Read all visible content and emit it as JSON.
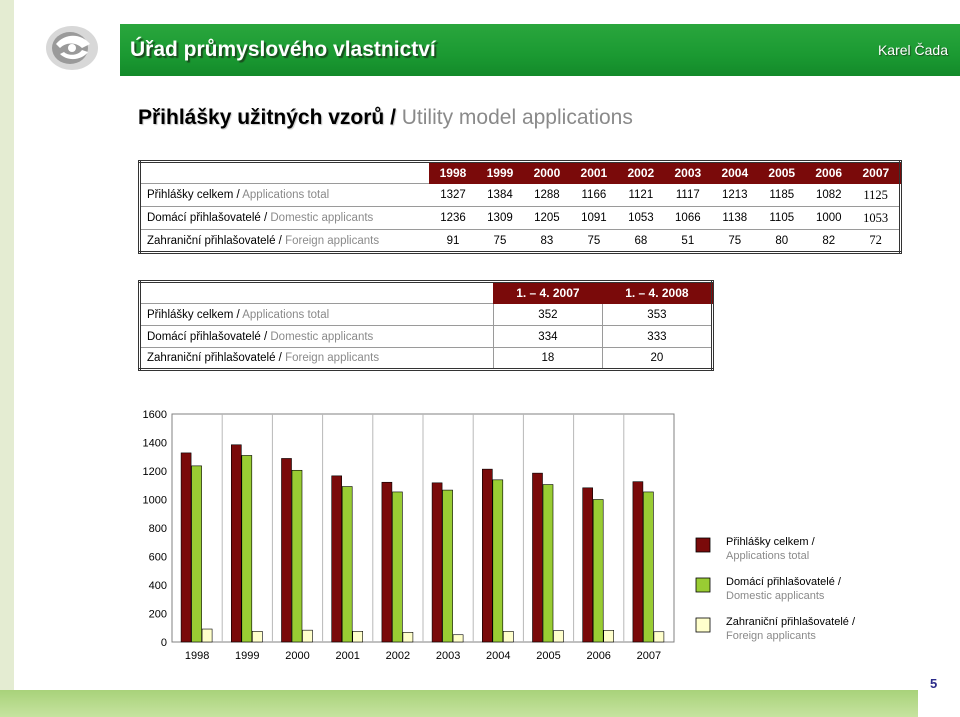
{
  "header": {
    "title": "Úřad průmyslového vlastnictví",
    "author": "Karel Čada"
  },
  "page": {
    "title_cz": "Přihlášky užitných vzorů /",
    "title_en": "Utility model applications",
    "number": "5"
  },
  "table1": {
    "years": [
      "1998",
      "1999",
      "2000",
      "2001",
      "2002",
      "2003",
      "2004",
      "2005",
      "2006",
      "2007"
    ],
    "rows": [
      {
        "label_cz": "Přihlášky celkem /",
        "label_en": "Applications total",
        "values": [
          "1327",
          "1384",
          "1288",
          "1166",
          "1121",
          "1117",
          "1213",
          "1185",
          "1082",
          "1125"
        ]
      },
      {
        "label_cz": "Domácí přihlašovatelé /",
        "label_en": "Domestic applicants",
        "values": [
          "1236",
          "1309",
          "1205",
          "1091",
          "1053",
          "1066",
          "1138",
          "1105",
          "1000",
          "1053"
        ]
      },
      {
        "label_cz": "Zahraniční přihlašovatelé /",
        "label_en": "Foreign applicants",
        "values": [
          "91",
          "75",
          "83",
          "75",
          "68",
          "51",
          "75",
          "80",
          "82",
          "72"
        ]
      }
    ]
  },
  "table2": {
    "headers": [
      "1. – 4. 2007",
      "1. – 4. 2008"
    ],
    "rows": [
      {
        "label_cz": "Přihlášky celkem /",
        "label_en": "Applications total",
        "values": [
          "352",
          "353"
        ]
      },
      {
        "label_cz": "Domácí přihlašovatelé /",
        "label_en": "Domestic applicants",
        "values": [
          "334",
          "333"
        ]
      },
      {
        "label_cz": "Zahraniční přihlašovatelé /",
        "label_en": "Foreign applicants",
        "values": [
          "18",
          "20"
        ]
      }
    ]
  },
  "chart_data": {
    "type": "bar",
    "categories": [
      "1998",
      "1999",
      "2000",
      "2001",
      "2002",
      "2003",
      "2004",
      "2005",
      "2006",
      "2007"
    ],
    "series": [
      {
        "name": "Přihlášky celkem / Applications total",
        "color": "#7a0a0a",
        "values": [
          1327,
          1384,
          1288,
          1166,
          1121,
          1117,
          1213,
          1185,
          1082,
          1125
        ]
      },
      {
        "name": "Domácí přihlašovatelé / Domestic applicants",
        "color": "#99cc33",
        "values": [
          1236,
          1309,
          1205,
          1091,
          1053,
          1066,
          1138,
          1105,
          1000,
          1053
        ]
      },
      {
        "name": "Zahraniční přihlašovatelé / Foreign applicants",
        "color": "#ffffcc",
        "values": [
          91,
          75,
          83,
          75,
          68,
          51,
          75,
          80,
          82,
          72
        ]
      }
    ],
    "ylim": [
      0,
      1600
    ],
    "yticks": [
      "0",
      "200",
      "400",
      "600",
      "800",
      "1000",
      "1200",
      "1400",
      "1600"
    ],
    "grid": true,
    "legend": "right",
    "legend_lines": [
      [
        "Přihlášky celkem /",
        "Applications total"
      ],
      [
        "Domácí přihlašovatelé /",
        "Domestic applicants"
      ],
      [
        "Zahraniční přihlašovatelé /",
        "Foreign applicants"
      ]
    ]
  }
}
